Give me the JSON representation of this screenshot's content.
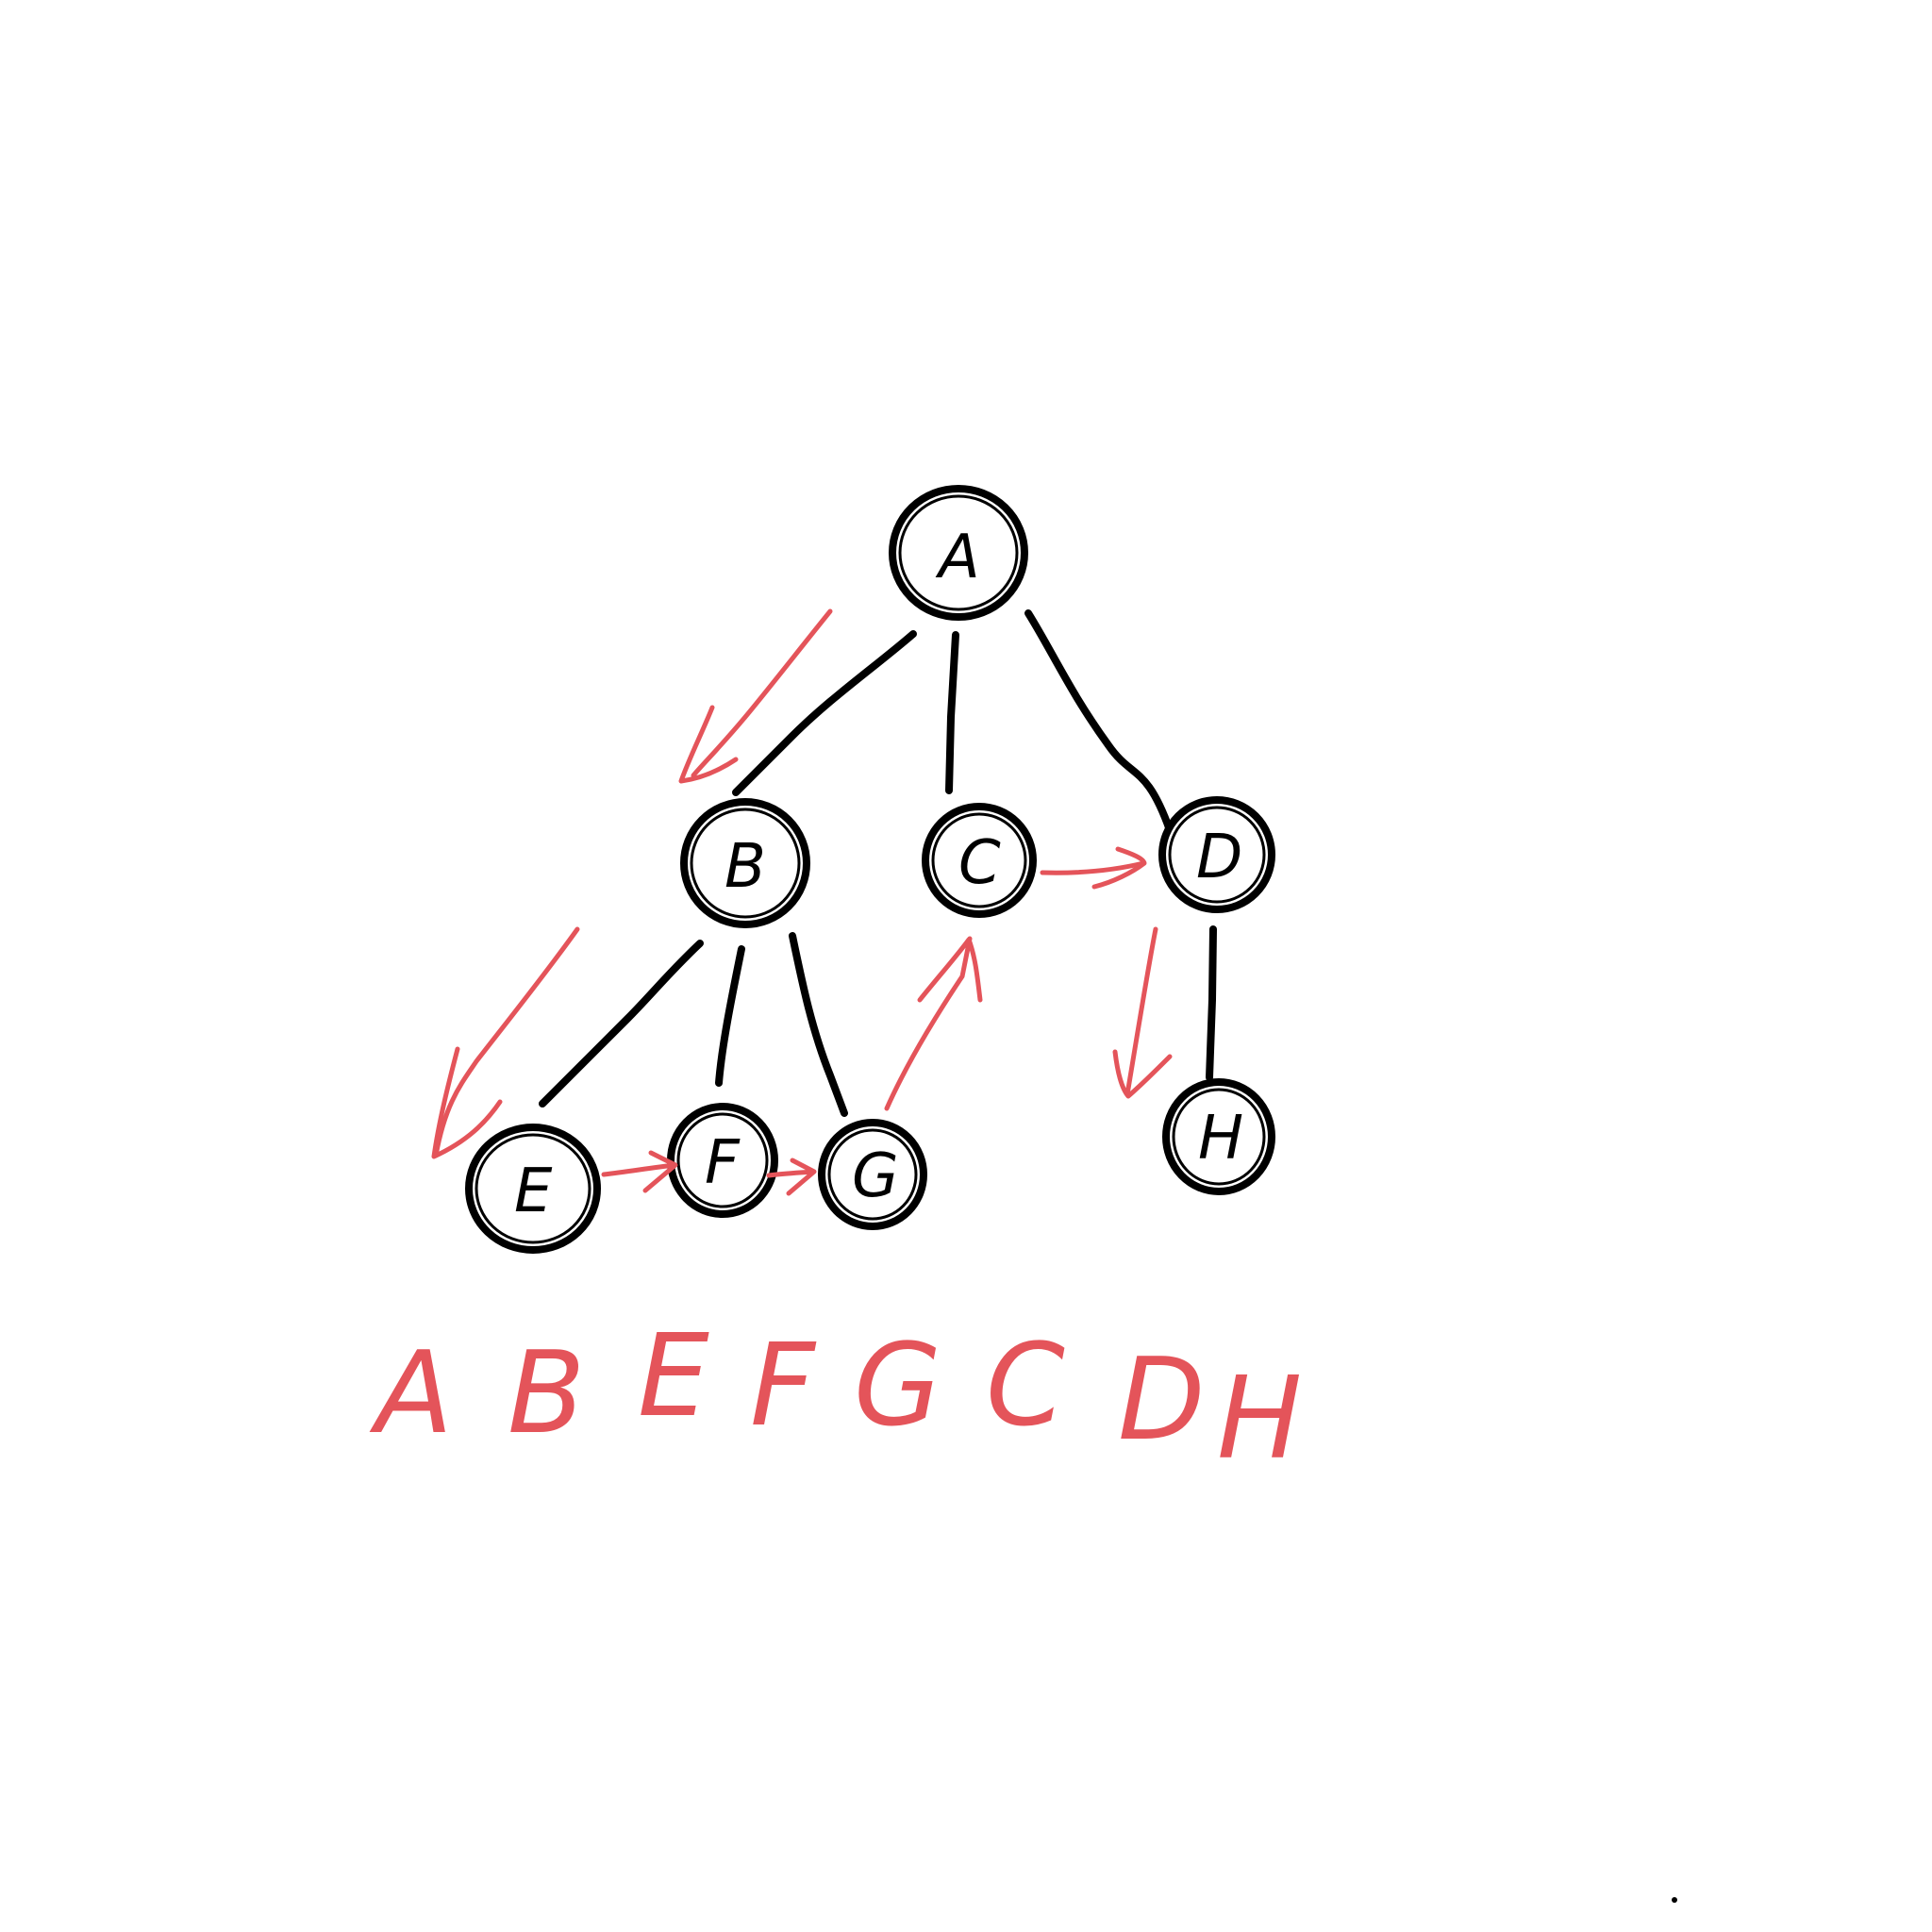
{
  "diagram": {
    "type": "tree-traversal",
    "nodes": [
      {
        "id": "A",
        "label": "A"
      },
      {
        "id": "B",
        "label": "B"
      },
      {
        "id": "C",
        "label": "C"
      },
      {
        "id": "D",
        "label": "D"
      },
      {
        "id": "E",
        "label": "E"
      },
      {
        "id": "F",
        "label": "F"
      },
      {
        "id": "G",
        "label": "G"
      },
      {
        "id": "H",
        "label": "H"
      }
    ],
    "edges": [
      {
        "from": "A",
        "to": "B"
      },
      {
        "from": "A",
        "to": "C"
      },
      {
        "from": "A",
        "to": "D"
      },
      {
        "from": "B",
        "to": "E"
      },
      {
        "from": "B",
        "to": "F"
      },
      {
        "from": "B",
        "to": "G"
      },
      {
        "from": "D",
        "to": "H"
      }
    ],
    "traversal_arrows": [
      {
        "from": "A",
        "to": "B"
      },
      {
        "from": "B",
        "to": "E"
      },
      {
        "from": "E",
        "to": "F"
      },
      {
        "from": "F",
        "to": "G"
      },
      {
        "from": "G",
        "to": "C"
      },
      {
        "from": "C",
        "to": "D"
      },
      {
        "from": "D",
        "to": "H"
      }
    ],
    "traversal_order": [
      "A",
      "B",
      "E",
      "F",
      "G",
      "C",
      "D",
      "H"
    ],
    "colors": {
      "tree": "#000000",
      "traversal": "#e4545a",
      "background": "#ffffff"
    }
  }
}
